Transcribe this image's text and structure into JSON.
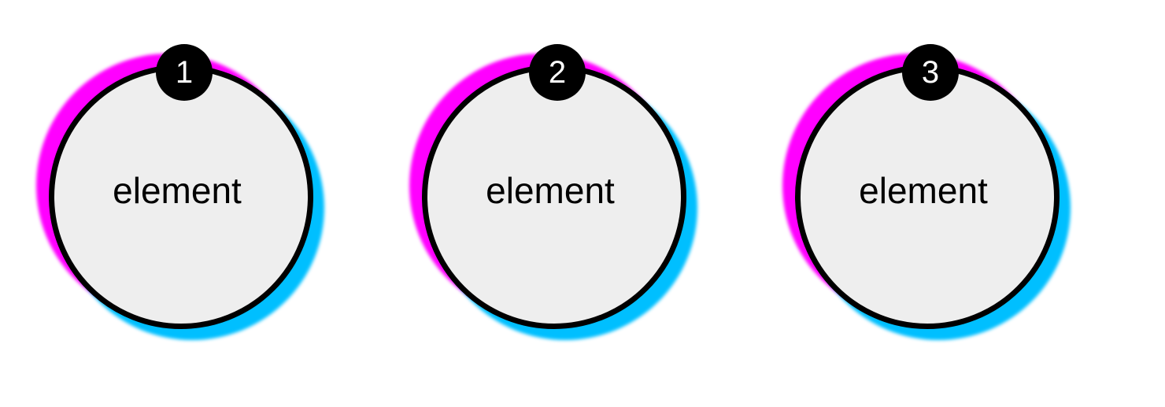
{
  "items": [
    {
      "number": "1",
      "label": "element"
    },
    {
      "number": "2",
      "label": "element"
    },
    {
      "number": "3",
      "label": "element"
    }
  ],
  "colors": {
    "background": "#ffffff",
    "disc_fill": "#eeeeee",
    "disc_border": "#000000",
    "badge_fill": "#000000",
    "badge_text": "#ffffff",
    "glow_magenta": "#ff00ff",
    "glow_cyan": "#00bfff"
  }
}
